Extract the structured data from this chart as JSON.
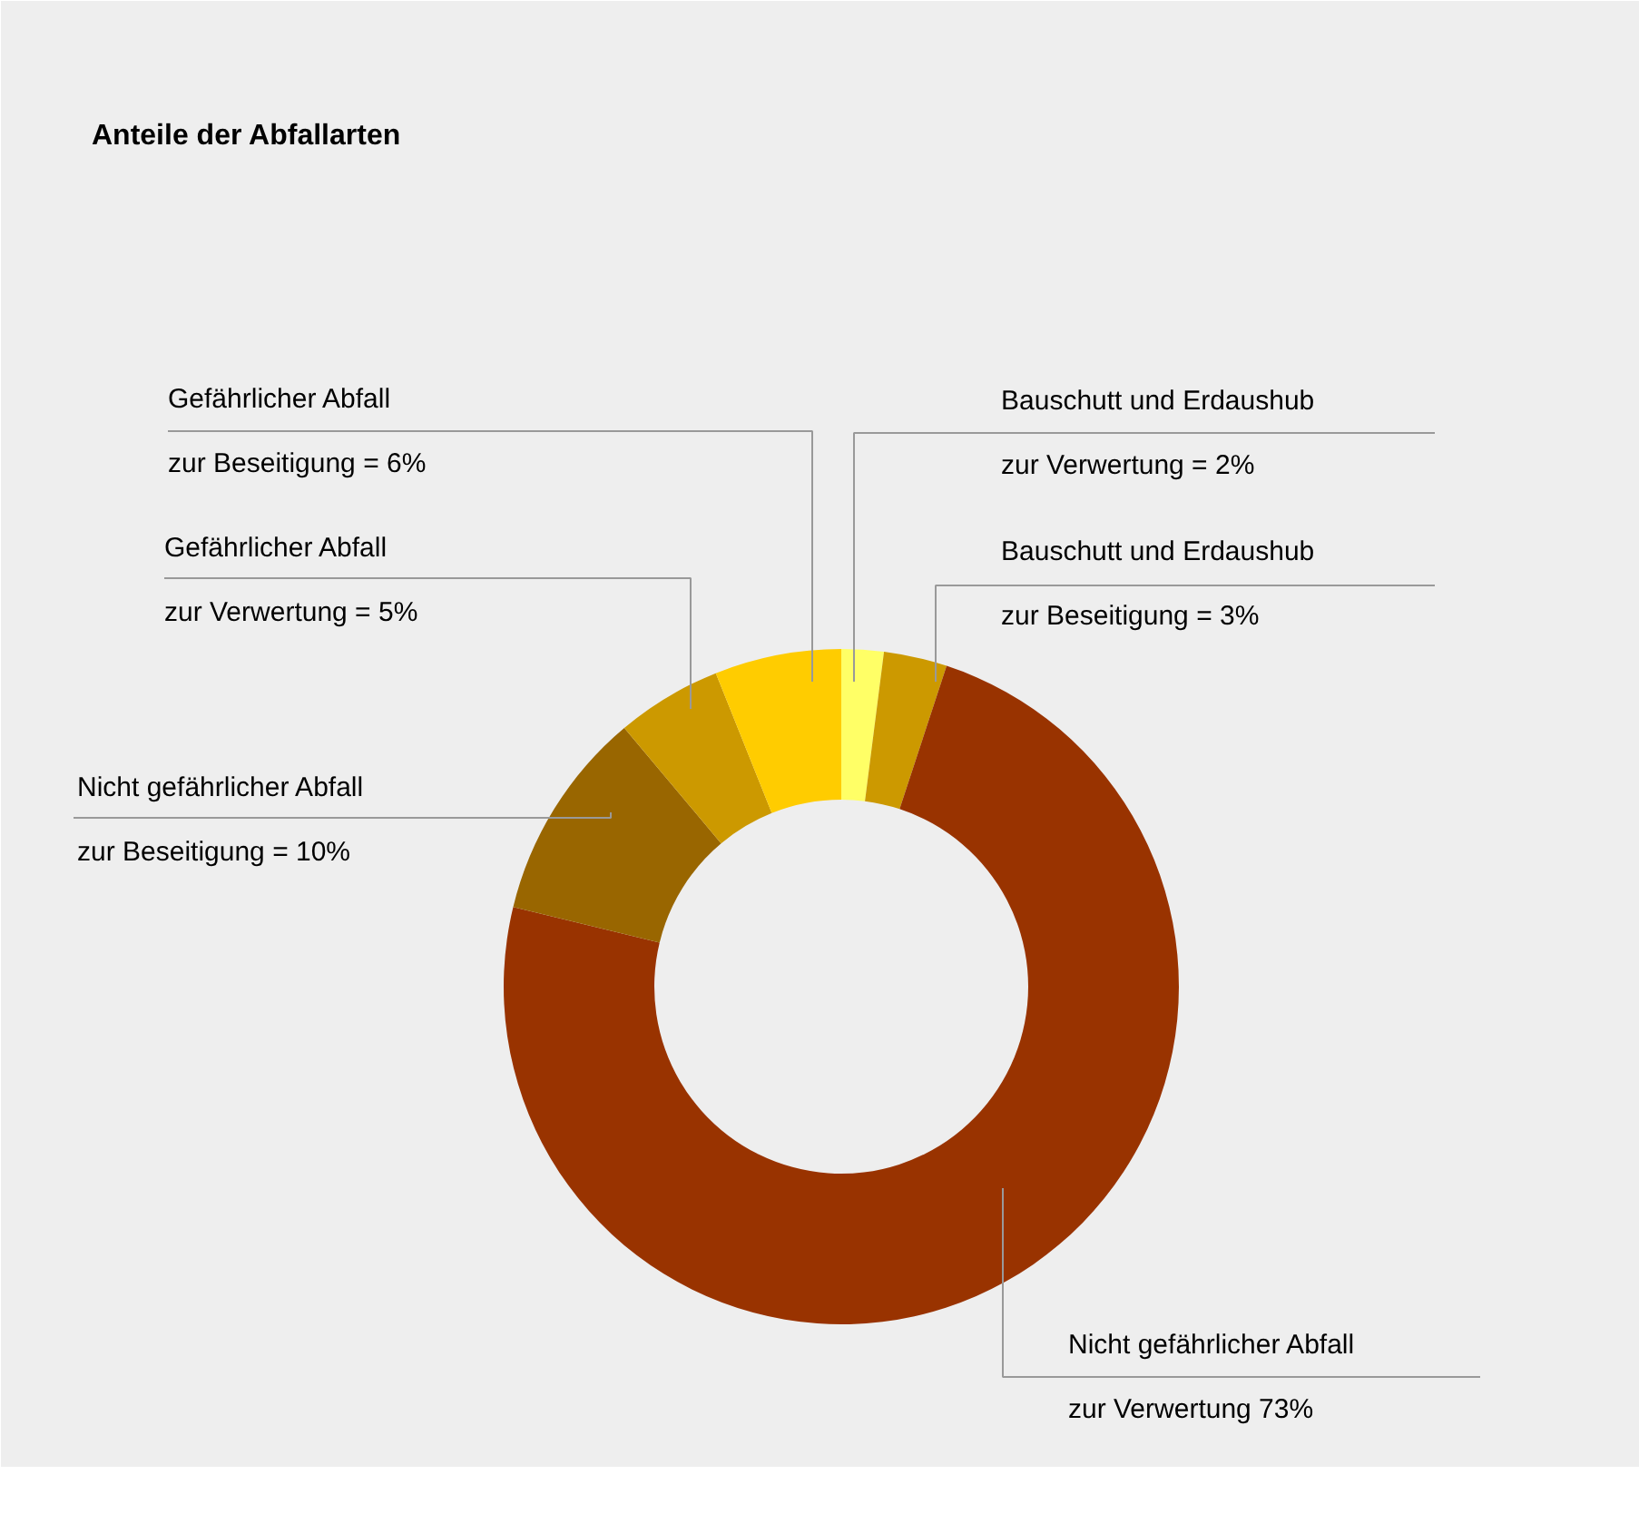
{
  "chart_data": {
    "type": "donut",
    "title": "Anteile der Abfallarten",
    "categories": [
      "Bauschutt und Erdaushub\nzur Verwertung = 2%",
      "Bauschutt und Erdaushub\nzur Beseitigung = 3%",
      "Nicht gefährlicher Abfall\nzur Verwertung 73%",
      "Nicht gefährlicher Abfall\nzur Beseitigung = 10%",
      "Gefährlicher Abfall\nzur Verwertung = 5%",
      "Gefährlicher Abfall\nzur Beseitigung = 6%"
    ],
    "values": [
      2,
      3,
      73,
      10,
      5,
      6
    ],
    "colors": [
      "#ffff66",
      "#cc9900",
      "#993300",
      "#996600",
      "#cc9900",
      "#ffcc00"
    ]
  }
}
